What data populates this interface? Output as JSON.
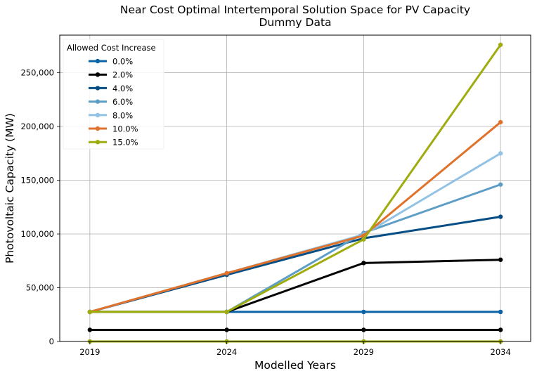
{
  "chart_data": {
    "type": "line",
    "title": "Near Cost Optimal Intertemporal Solution Space for PV Capacity",
    "subtitle": "Dummy Data",
    "xlabel": "Modelled Years",
    "ylabel": "Photovoltaic Capacity (MW)",
    "x": [
      2019,
      2024,
      2029,
      2034
    ],
    "x_tick_labels": [
      "2019",
      "2024",
      "2029",
      "2034"
    ],
    "ylim": [
      0,
      285000
    ],
    "y_ticks": [
      0,
      50000,
      100000,
      150000,
      200000,
      250000
    ],
    "y_tick_labels": [
      "0",
      "50,000",
      "100,000",
      "150,000",
      "200,000",
      "250,000"
    ],
    "grid": true,
    "legend": {
      "title": "Allowed Cost Increase",
      "placement": "top-left"
    },
    "series": [
      {
        "name": "0.0%",
        "color": "#0c64a8",
        "lines": [
          [
            27500,
            27500,
            27500,
            27500
          ]
        ]
      },
      {
        "name": "2.0%",
        "color": "#000000",
        "lines": [
          [
            10800,
            10800,
            10800,
            10800
          ],
          [
            27500,
            27500,
            73000,
            76000
          ]
        ]
      },
      {
        "name": "4.0%",
        "color": "#054d85",
        "lines": [
          [
            27500,
            62000,
            96000,
            116000
          ]
        ]
      },
      {
        "name": "6.0%",
        "color": "#5e9ec6",
        "lines": [
          [
            27500,
            27500,
            101000,
            146000
          ]
        ]
      },
      {
        "name": "8.0%",
        "color": "#92c2e4",
        "lines": [
          [
            27500,
            63500,
            99500,
            175000
          ]
        ]
      },
      {
        "name": "10.0%",
        "color": "#e0722c",
        "lines": [
          [
            27500,
            63500,
            98500,
            204000
          ]
        ]
      },
      {
        "name": "15.0%",
        "color": "#9fac0e",
        "lines": [
          [
            27500,
            27500,
            95000,
            276000
          ],
          [
            0,
            0,
            0,
            0
          ]
        ]
      }
    ]
  }
}
